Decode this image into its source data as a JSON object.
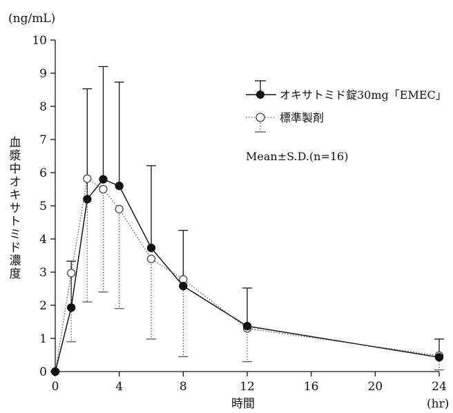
{
  "chart_data": {
    "type": "line",
    "y_unit": "(ng/mL)",
    "x_unit": "(hr)",
    "xlabel": "時間",
    "ylabel": "血漿中オキサトミド濃度",
    "x_ticks": [
      0,
      4,
      8,
      12,
      16,
      20,
      24
    ],
    "y_ticks": [
      0,
      1,
      2,
      3,
      4,
      5,
      6,
      7,
      8,
      9,
      10
    ],
    "xlim": [
      0,
      24
    ],
    "ylim": [
      0,
      10
    ],
    "grid": false,
    "legend_position": "top-right",
    "annotation": "Mean±S.D.(n=16)",
    "series": [
      {
        "name": "オキサトミド錠30mg「EMEC」",
        "marker": "filled-circle",
        "line": "solid",
        "error_bar": "up",
        "x": [
          0,
          1,
          2,
          3,
          4,
          6,
          8,
          12,
          24
        ],
        "y": [
          0,
          1.93,
          5.2,
          5.8,
          5.6,
          3.73,
          2.58,
          1.37,
          0.43
        ],
        "sd": [
          0,
          1.4,
          3.33,
          3.4,
          3.13,
          2.48,
          1.68,
          1.15,
          0.55
        ]
      },
      {
        "name": "標準製剤",
        "marker": "open-circle",
        "line": "dotted",
        "error_bar": "down",
        "x": [
          0,
          1,
          2,
          3,
          4,
          6,
          8,
          12,
          24
        ],
        "y": [
          0,
          2.97,
          5.82,
          5.5,
          4.9,
          3.4,
          2.78,
          1.3,
          0.48
        ],
        "sd": [
          0,
          2.07,
          3.72,
          3.1,
          3.0,
          2.42,
          2.33,
          1.0,
          0.43
        ]
      }
    ]
  }
}
